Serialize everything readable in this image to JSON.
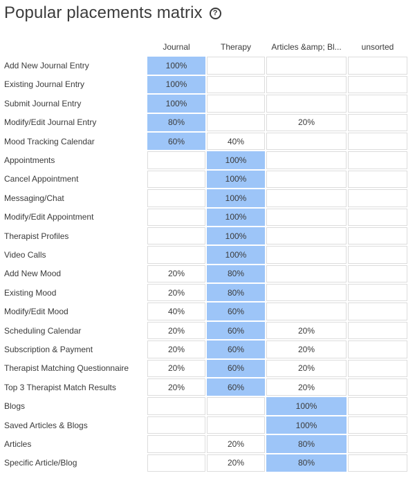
{
  "page": {
    "title": "Popular placements matrix",
    "help_icon": "?"
  },
  "columns": [
    "Journal",
    "Therapy",
    "Articles &amp; Bl...",
    "unsorted"
  ],
  "rows": [
    {
      "label": "Add New Journal Entry",
      "cells": [
        "100%",
        "",
        "",
        ""
      ],
      "highlight": [
        true,
        false,
        false,
        false
      ]
    },
    {
      "label": "Existing Journal Entry",
      "cells": [
        "100%",
        "",
        "",
        ""
      ],
      "highlight": [
        true,
        false,
        false,
        false
      ]
    },
    {
      "label": "Submit Journal Entry",
      "cells": [
        "100%",
        "",
        "",
        ""
      ],
      "highlight": [
        true,
        false,
        false,
        false
      ]
    },
    {
      "label": "Modify/Edit Journal Entry",
      "cells": [
        "80%",
        "",
        "20%",
        ""
      ],
      "highlight": [
        true,
        false,
        false,
        false
      ]
    },
    {
      "label": "Mood Tracking Calendar",
      "cells": [
        "60%",
        "40%",
        "",
        ""
      ],
      "highlight": [
        true,
        false,
        false,
        false
      ]
    },
    {
      "label": "Appointments",
      "cells": [
        "",
        "100%",
        "",
        ""
      ],
      "highlight": [
        false,
        true,
        false,
        false
      ]
    },
    {
      "label": "Cancel Appointment",
      "cells": [
        "",
        "100%",
        "",
        ""
      ],
      "highlight": [
        false,
        true,
        false,
        false
      ]
    },
    {
      "label": "Messaging/Chat",
      "cells": [
        "",
        "100%",
        "",
        ""
      ],
      "highlight": [
        false,
        true,
        false,
        false
      ]
    },
    {
      "label": "Modify/Edit Appointment",
      "cells": [
        "",
        "100%",
        "",
        ""
      ],
      "highlight": [
        false,
        true,
        false,
        false
      ]
    },
    {
      "label": "Therapist Profiles",
      "cells": [
        "",
        "100%",
        "",
        ""
      ],
      "highlight": [
        false,
        true,
        false,
        false
      ]
    },
    {
      "label": "Video Calls",
      "cells": [
        "",
        "100%",
        "",
        ""
      ],
      "highlight": [
        false,
        true,
        false,
        false
      ]
    },
    {
      "label": "Add New Mood",
      "cells": [
        "20%",
        "80%",
        "",
        ""
      ],
      "highlight": [
        false,
        true,
        false,
        false
      ]
    },
    {
      "label": "Existing Mood",
      "cells": [
        "20%",
        "80%",
        "",
        ""
      ],
      "highlight": [
        false,
        true,
        false,
        false
      ]
    },
    {
      "label": "Modify/Edit Mood",
      "cells": [
        "40%",
        "60%",
        "",
        ""
      ],
      "highlight": [
        false,
        true,
        false,
        false
      ]
    },
    {
      "label": "Scheduling Calendar",
      "cells": [
        "20%",
        "60%",
        "20%",
        ""
      ],
      "highlight": [
        false,
        true,
        false,
        false
      ]
    },
    {
      "label": "Subscription & Payment",
      "cells": [
        "20%",
        "60%",
        "20%",
        ""
      ],
      "highlight": [
        false,
        true,
        false,
        false
      ]
    },
    {
      "label": "Therapist Matching Questionnaire",
      "cells": [
        "20%",
        "60%",
        "20%",
        ""
      ],
      "highlight": [
        false,
        true,
        false,
        false
      ]
    },
    {
      "label": "Top 3 Therapist Match Results",
      "cells": [
        "20%",
        "60%",
        "20%",
        ""
      ],
      "highlight": [
        false,
        true,
        false,
        false
      ]
    },
    {
      "label": "Blogs",
      "cells": [
        "",
        "",
        "100%",
        ""
      ],
      "highlight": [
        false,
        false,
        true,
        false
      ]
    },
    {
      "label": "Saved Articles & Blogs",
      "cells": [
        "",
        "",
        "100%",
        ""
      ],
      "highlight": [
        false,
        false,
        true,
        false
      ]
    },
    {
      "label": "Articles",
      "cells": [
        "",
        "20%",
        "80%",
        ""
      ],
      "highlight": [
        false,
        false,
        true,
        false
      ]
    },
    {
      "label": "Specific Article/Blog",
      "cells": [
        "",
        "20%",
        "80%",
        ""
      ],
      "highlight": [
        false,
        false,
        true,
        false
      ]
    }
  ],
  "colors": {
    "highlight": "#9dc5f8",
    "cell_border": "#dcdcdc",
    "text": "#3a3a3a"
  }
}
